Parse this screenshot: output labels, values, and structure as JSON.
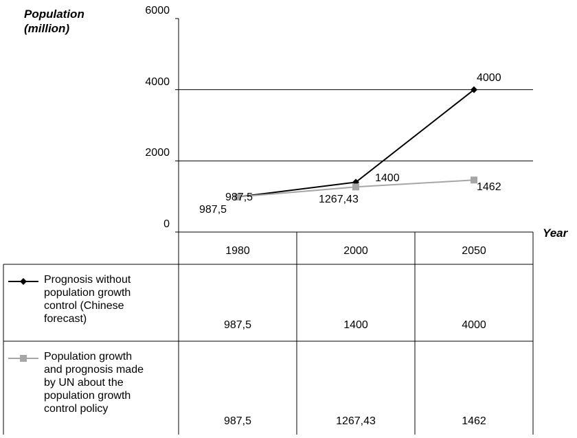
{
  "chart_data": {
    "type": "line",
    "ylabel": "Population (million)",
    "ylabel_line1": "Population",
    "ylabel_line2": "(million)",
    "xlabel": "Year",
    "ylim": [
      0,
      6000
    ],
    "yticks": [
      "0",
      "2000",
      "4000",
      "6000"
    ],
    "categories": [
      "1980",
      "2000",
      "2050"
    ],
    "grid": "horizontal",
    "series": [
      {
        "name": "Prognosis without population growth control (Chinese forecast)",
        "values": [
          987.5,
          1400,
          4000
        ],
        "labels": [
          "987,5",
          "1400",
          "4000"
        ],
        "color": "#000000",
        "marker": "diamond"
      },
      {
        "name": "Population growth and prognosis made by UN about the population growth control policy",
        "values": [
          987.5,
          1267.43,
          1462
        ],
        "labels": [
          "987,5",
          "1267,43",
          "1462"
        ],
        "color": "#a6a6a6",
        "marker": "square"
      }
    ],
    "legend": "data-table-below",
    "legend_lines": [
      [
        "Prognosis without",
        "population growth",
        "control (Chinese",
        "forecast)"
      ],
      [
        "Population growth",
        "and prognosis made",
        "by UN about the",
        "population growth",
        "control policy"
      ]
    ]
  }
}
